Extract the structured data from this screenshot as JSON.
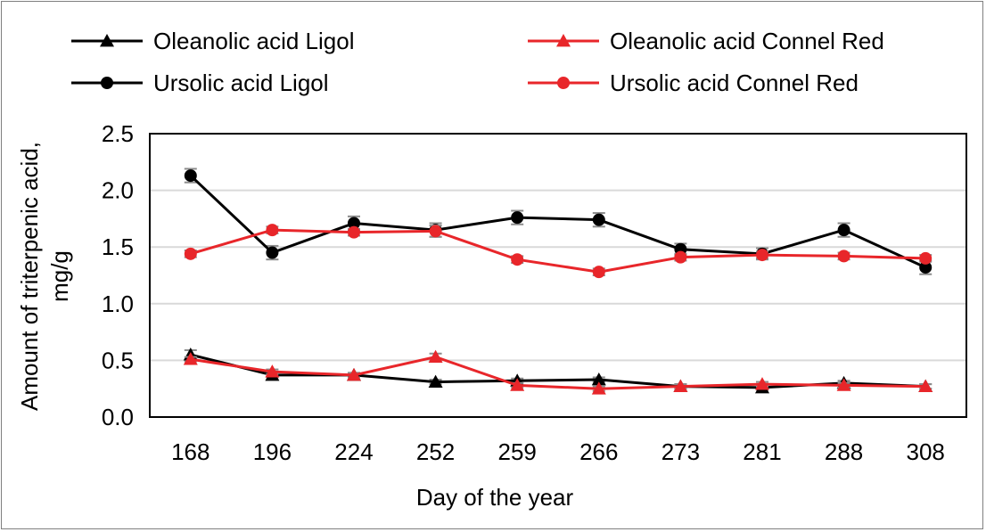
{
  "chart_data": {
    "type": "line",
    "title": "",
    "xlabel": "Day of the year",
    "ylabel_line1": "Amount of triterpenic acid,",
    "ylabel_line2": "mg/g",
    "categories": [
      "168",
      "196",
      "224",
      "252",
      "259",
      "266",
      "273",
      "281",
      "288",
      "308"
    ],
    "ylim": [
      0,
      2.5
    ],
    "yticks": [
      "0.0",
      "0.5",
      "1.0",
      "1.5",
      "2.0",
      "2.5"
    ],
    "grid": true,
    "legend_position": "top",
    "series": [
      {
        "name": "Oleanolic acid Ligol",
        "color": "#000000",
        "marker": "triangle",
        "values": [
          0.55,
          0.37,
          0.37,
          0.31,
          0.32,
          0.33,
          0.27,
          0.26,
          0.3,
          0.27
        ],
        "errors": [
          0.04,
          0.02,
          0.02,
          0.02,
          0.02,
          0.02,
          0.02,
          0.02,
          0.02,
          0.02
        ]
      },
      {
        "name": "Ursolic acid Ligol",
        "color": "#000000",
        "marker": "circle",
        "values": [
          2.13,
          1.45,
          1.71,
          1.65,
          1.76,
          1.74,
          1.48,
          1.44,
          1.65,
          1.32
        ],
        "errors": [
          0.06,
          0.06,
          0.06,
          0.06,
          0.06,
          0.06,
          0.05,
          0.05,
          0.06,
          0.06
        ]
      },
      {
        "name": "Oleanolic acid Connel Red",
        "color": "#e8262a",
        "marker": "triangle",
        "values": [
          0.51,
          0.4,
          0.37,
          0.53,
          0.28,
          0.25,
          0.27,
          0.29,
          0.28,
          0.27
        ],
        "errors": [
          0.02,
          0.02,
          0.02,
          0.03,
          0.02,
          0.02,
          0.02,
          0.02,
          0.02,
          0.02
        ]
      },
      {
        "name": "Ursolic acid Connel Red",
        "color": "#e8262a",
        "marker": "circle",
        "values": [
          1.44,
          1.65,
          1.63,
          1.64,
          1.39,
          1.28,
          1.41,
          1.43,
          1.42,
          1.4
        ],
        "errors": [
          0.03,
          0.03,
          0.03,
          0.05,
          0.03,
          0.03,
          0.03,
          0.03,
          0.03,
          0.03
        ]
      }
    ]
  }
}
